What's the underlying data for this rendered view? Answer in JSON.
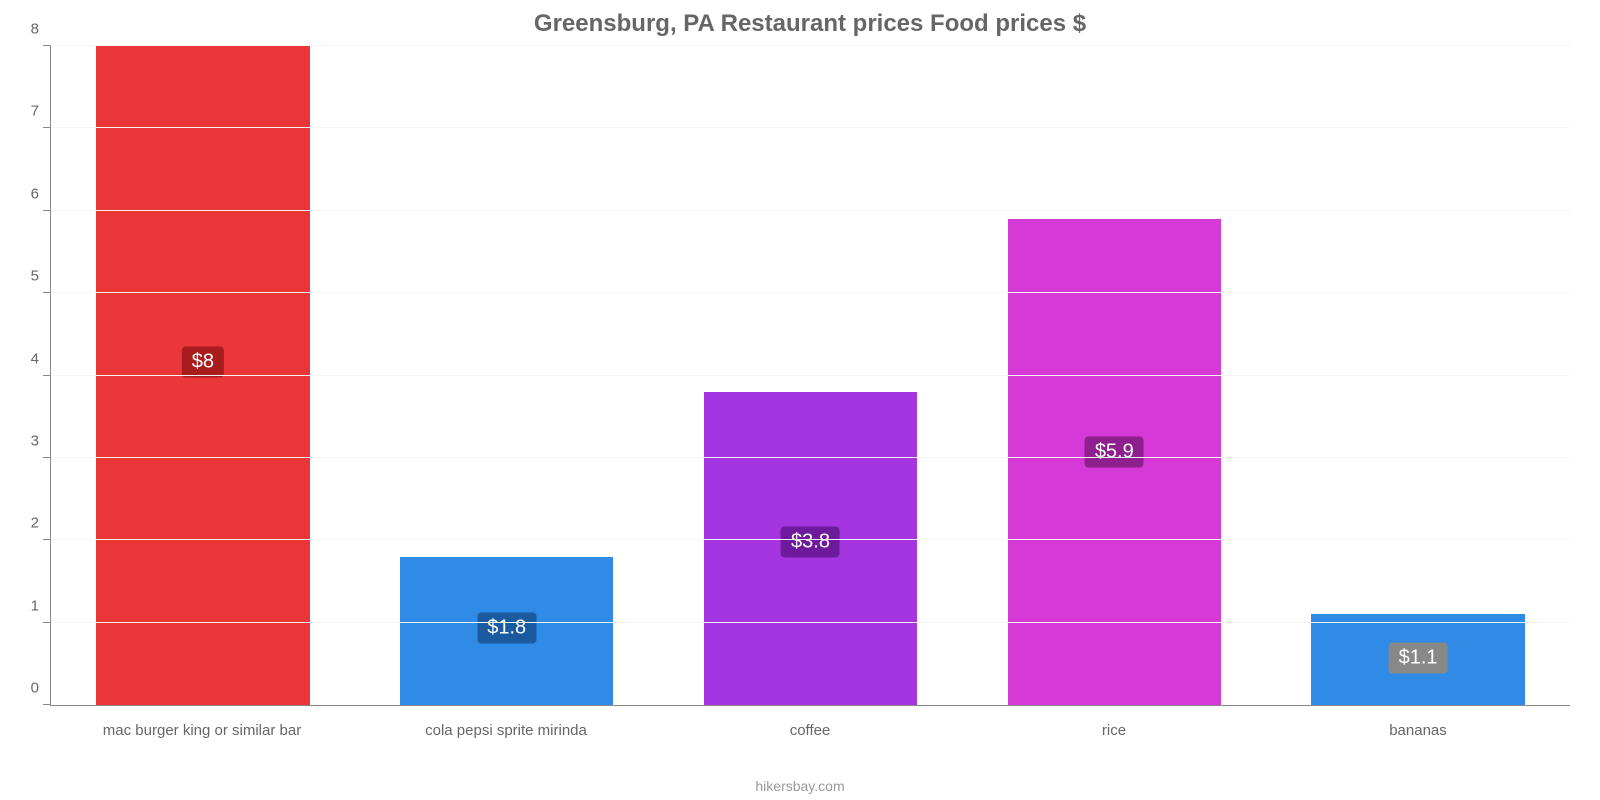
{
  "chart": {
    "type": "bar",
    "title": "Greensburg, PA Restaurant prices Food prices $",
    "title_fontsize": 24,
    "title_color": "#666666",
    "footer": "hikersbay.com",
    "footer_color": "#999999",
    "background_color": "#ffffff",
    "grid_color": "#f5f5f5",
    "axis_color": "#888888",
    "tick_label_color": "#666666",
    "tick_label_fontsize": 15,
    "xlabel_fontsize": 15,
    "bar_width_ratio": 0.78,
    "ylim": [
      0,
      8
    ],
    "ytick_step": 1,
    "yticks": [
      0,
      1,
      2,
      3,
      4,
      5,
      6,
      7,
      8
    ],
    "categories": [
      "mac burger king or similar bar",
      "cola pepsi sprite mirinda",
      "coffee",
      "rice",
      "bananas"
    ],
    "values": [
      8,
      1.8,
      3.8,
      5.9,
      1.1
    ],
    "value_labels": [
      "$8",
      "$1.8",
      "$3.8",
      "$5.9",
      "$1.1"
    ],
    "bar_colors": [
      "#eb3639",
      "#2f8be6",
      "#a535e0",
      "#d63ad6",
      "#2f8be6"
    ],
    "label_bg_colors": [
      "#a81c1e",
      "#195b9e",
      "#6d1b9c",
      "#8e1f8e",
      "#888888"
    ],
    "label_text_color": "#ffffff",
    "label_fontsize": 20
  }
}
